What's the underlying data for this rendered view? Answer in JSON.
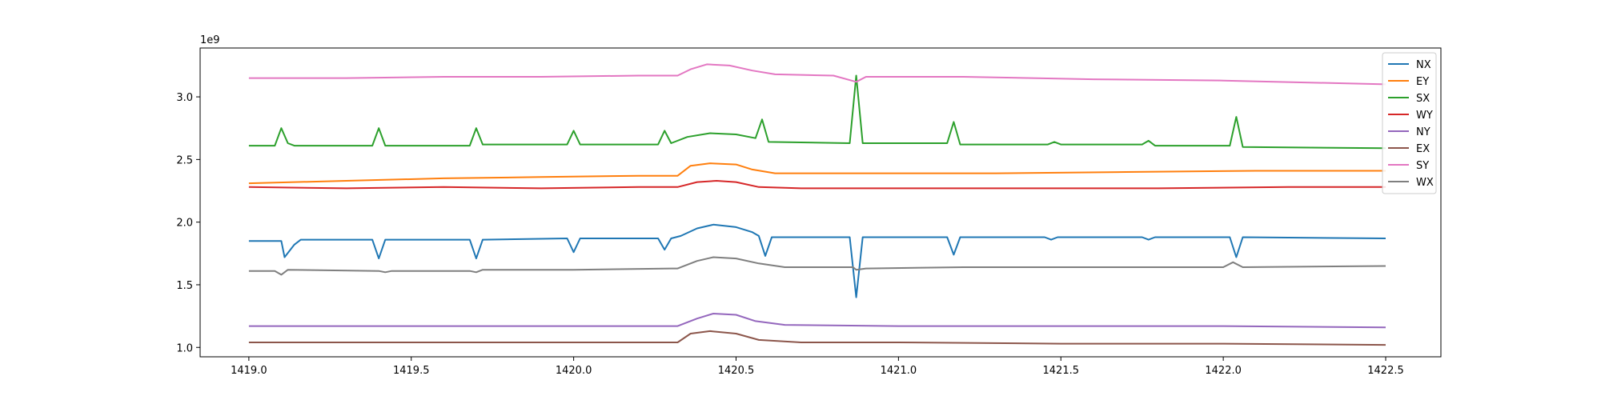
{
  "chart_data": {
    "type": "line",
    "title": "",
    "xlabel": "",
    "ylabel": "",
    "offset_text": "1e9",
    "xlim": [
      1418.85,
      1422.67
    ],
    "ylim": [
      0.925,
      3.39
    ],
    "x_ticks": [
      1419.0,
      1419.5,
      1420.0,
      1420.5,
      1421.0,
      1421.5,
      1422.0,
      1422.5
    ],
    "x_tick_labels": [
      "1419.0",
      "1419.5",
      "1420.0",
      "1420.5",
      "1421.0",
      "1421.5",
      "1422.0",
      "1422.5"
    ],
    "y_ticks": [
      1.0,
      1.5,
      2.0,
      2.5,
      3.0
    ],
    "y_tick_labels": [
      "1.0",
      "1.5",
      "2.0",
      "2.5",
      "3.0"
    ],
    "grid": false,
    "legend_position": "top-right",
    "series": [
      {
        "name": "NX",
        "color": "#1f77b4",
        "points": [
          [
            1419.0,
            1.85
          ],
          [
            1419.1,
            1.85
          ],
          [
            1419.11,
            1.72
          ],
          [
            1419.14,
            1.82
          ],
          [
            1419.16,
            1.86
          ],
          [
            1419.38,
            1.86
          ],
          [
            1419.4,
            1.71
          ],
          [
            1419.42,
            1.86
          ],
          [
            1419.68,
            1.86
          ],
          [
            1419.7,
            1.71
          ],
          [
            1419.72,
            1.86
          ],
          [
            1419.98,
            1.87
          ],
          [
            1420.0,
            1.76
          ],
          [
            1420.02,
            1.87
          ],
          [
            1420.26,
            1.87
          ],
          [
            1420.28,
            1.78
          ],
          [
            1420.3,
            1.87
          ],
          [
            1420.33,
            1.89
          ],
          [
            1420.38,
            1.95
          ],
          [
            1420.43,
            1.98
          ],
          [
            1420.5,
            1.96
          ],
          [
            1420.55,
            1.92
          ],
          [
            1420.57,
            1.89
          ],
          [
            1420.59,
            1.73
          ],
          [
            1420.61,
            1.88
          ],
          [
            1420.85,
            1.88
          ],
          [
            1420.87,
            1.4
          ],
          [
            1420.89,
            1.88
          ],
          [
            1421.15,
            1.88
          ],
          [
            1421.17,
            1.74
          ],
          [
            1421.19,
            1.88
          ],
          [
            1421.45,
            1.88
          ],
          [
            1421.47,
            1.86
          ],
          [
            1421.49,
            1.88
          ],
          [
            1421.75,
            1.88
          ],
          [
            1421.77,
            1.86
          ],
          [
            1421.79,
            1.88
          ],
          [
            1422.02,
            1.88
          ],
          [
            1422.04,
            1.72
          ],
          [
            1422.06,
            1.88
          ],
          [
            1422.5,
            1.87
          ]
        ]
      },
      {
        "name": "EY",
        "color": "#ff7f0e",
        "points": [
          [
            1419.0,
            2.31
          ],
          [
            1419.3,
            2.33
          ],
          [
            1419.6,
            2.35
          ],
          [
            1419.9,
            2.36
          ],
          [
            1420.2,
            2.37
          ],
          [
            1420.32,
            2.37
          ],
          [
            1420.36,
            2.45
          ],
          [
            1420.42,
            2.47
          ],
          [
            1420.5,
            2.46
          ],
          [
            1420.55,
            2.42
          ],
          [
            1420.62,
            2.39
          ],
          [
            1420.9,
            2.39
          ],
          [
            1421.3,
            2.39
          ],
          [
            1421.7,
            2.4
          ],
          [
            1422.1,
            2.41
          ],
          [
            1422.5,
            2.41
          ]
        ]
      },
      {
        "name": "SX",
        "color": "#2ca02c",
        "points": [
          [
            1419.0,
            2.61
          ],
          [
            1419.06,
            2.61
          ],
          [
            1419.08,
            2.61
          ],
          [
            1419.1,
            2.75
          ],
          [
            1419.12,
            2.63
          ],
          [
            1419.14,
            2.61
          ],
          [
            1419.38,
            2.61
          ],
          [
            1419.4,
            2.75
          ],
          [
            1419.42,
            2.61
          ],
          [
            1419.68,
            2.61
          ],
          [
            1419.7,
            2.75
          ],
          [
            1419.72,
            2.62
          ],
          [
            1419.98,
            2.62
          ],
          [
            1420.0,
            2.73
          ],
          [
            1420.02,
            2.62
          ],
          [
            1420.26,
            2.62
          ],
          [
            1420.28,
            2.73
          ],
          [
            1420.3,
            2.63
          ],
          [
            1420.35,
            2.68
          ],
          [
            1420.42,
            2.71
          ],
          [
            1420.5,
            2.7
          ],
          [
            1420.56,
            2.67
          ],
          [
            1420.58,
            2.82
          ],
          [
            1420.6,
            2.64
          ],
          [
            1420.85,
            2.63
          ],
          [
            1420.87,
            3.17
          ],
          [
            1420.89,
            2.63
          ],
          [
            1421.15,
            2.63
          ],
          [
            1421.17,
            2.8
          ],
          [
            1421.19,
            2.62
          ],
          [
            1421.46,
            2.62
          ],
          [
            1421.48,
            2.64
          ],
          [
            1421.5,
            2.62
          ],
          [
            1421.75,
            2.62
          ],
          [
            1421.77,
            2.65
          ],
          [
            1421.79,
            2.61
          ],
          [
            1422.0,
            2.61
          ],
          [
            1422.02,
            2.61
          ],
          [
            1422.04,
            2.84
          ],
          [
            1422.06,
            2.6
          ],
          [
            1422.5,
            2.59
          ]
        ]
      },
      {
        "name": "WY",
        "color": "#d62728",
        "points": [
          [
            1419.0,
            2.28
          ],
          [
            1419.3,
            2.27
          ],
          [
            1419.6,
            2.28
          ],
          [
            1419.9,
            2.27
          ],
          [
            1420.2,
            2.28
          ],
          [
            1420.32,
            2.28
          ],
          [
            1420.38,
            2.32
          ],
          [
            1420.44,
            2.33
          ],
          [
            1420.5,
            2.32
          ],
          [
            1420.57,
            2.28
          ],
          [
            1420.7,
            2.27
          ],
          [
            1421.0,
            2.27
          ],
          [
            1421.4,
            2.27
          ],
          [
            1421.8,
            2.27
          ],
          [
            1422.2,
            2.28
          ],
          [
            1422.5,
            2.28
          ]
        ]
      },
      {
        "name": "NY",
        "color": "#9467bd",
        "points": [
          [
            1419.0,
            1.17
          ],
          [
            1419.3,
            1.17
          ],
          [
            1419.6,
            1.17
          ],
          [
            1419.9,
            1.17
          ],
          [
            1420.2,
            1.17
          ],
          [
            1420.32,
            1.17
          ],
          [
            1420.38,
            1.23
          ],
          [
            1420.43,
            1.27
          ],
          [
            1420.5,
            1.26
          ],
          [
            1420.56,
            1.21
          ],
          [
            1420.65,
            1.18
          ],
          [
            1421.0,
            1.17
          ],
          [
            1421.5,
            1.17
          ],
          [
            1422.0,
            1.17
          ],
          [
            1422.5,
            1.16
          ]
        ]
      },
      {
        "name": "EX",
        "color": "#8c564b",
        "points": [
          [
            1419.0,
            1.04
          ],
          [
            1419.3,
            1.04
          ],
          [
            1419.6,
            1.04
          ],
          [
            1419.9,
            1.04
          ],
          [
            1420.2,
            1.04
          ],
          [
            1420.32,
            1.04
          ],
          [
            1420.36,
            1.11
          ],
          [
            1420.42,
            1.13
          ],
          [
            1420.5,
            1.11
          ],
          [
            1420.57,
            1.06
          ],
          [
            1420.7,
            1.04
          ],
          [
            1421.0,
            1.04
          ],
          [
            1421.5,
            1.03
          ],
          [
            1422.0,
            1.03
          ],
          [
            1422.5,
            1.02
          ]
        ]
      },
      {
        "name": "SY",
        "color": "#e377c2",
        "points": [
          [
            1419.0,
            3.15
          ],
          [
            1419.3,
            3.15
          ],
          [
            1419.6,
            3.16
          ],
          [
            1419.9,
            3.16
          ],
          [
            1420.2,
            3.17
          ],
          [
            1420.32,
            3.17
          ],
          [
            1420.36,
            3.22
          ],
          [
            1420.41,
            3.26
          ],
          [
            1420.48,
            3.25
          ],
          [
            1420.55,
            3.21
          ],
          [
            1420.62,
            3.18
          ],
          [
            1420.8,
            3.17
          ],
          [
            1420.87,
            3.12
          ],
          [
            1420.9,
            3.16
          ],
          [
            1421.2,
            3.16
          ],
          [
            1421.6,
            3.14
          ],
          [
            1422.0,
            3.13
          ],
          [
            1422.5,
            3.1
          ]
        ]
      },
      {
        "name": "WX",
        "color": "#7f7f7f",
        "points": [
          [
            1419.0,
            1.61
          ],
          [
            1419.08,
            1.61
          ],
          [
            1419.1,
            1.58
          ],
          [
            1419.12,
            1.62
          ],
          [
            1419.4,
            1.61
          ],
          [
            1419.42,
            1.6
          ],
          [
            1419.44,
            1.61
          ],
          [
            1419.68,
            1.61
          ],
          [
            1419.7,
            1.6
          ],
          [
            1419.72,
            1.62
          ],
          [
            1420.0,
            1.62
          ],
          [
            1420.3,
            1.63
          ],
          [
            1420.32,
            1.63
          ],
          [
            1420.38,
            1.69
          ],
          [
            1420.43,
            1.72
          ],
          [
            1420.5,
            1.71
          ],
          [
            1420.57,
            1.67
          ],
          [
            1420.65,
            1.64
          ],
          [
            1420.86,
            1.64
          ],
          [
            1420.87,
            1.62
          ],
          [
            1420.9,
            1.63
          ],
          [
            1421.2,
            1.64
          ],
          [
            1421.6,
            1.64
          ],
          [
            1422.0,
            1.64
          ],
          [
            1422.03,
            1.68
          ],
          [
            1422.06,
            1.64
          ],
          [
            1422.5,
            1.65
          ]
        ]
      }
    ]
  }
}
